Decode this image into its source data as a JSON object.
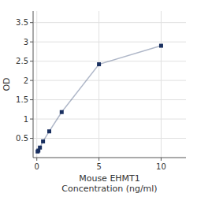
{
  "chart_data": {
    "type": "line",
    "x": [
      0.0625,
      0.125,
      0.25,
      0.5,
      1,
      2,
      5,
      10
    ],
    "values": [
      0.158,
      0.183,
      0.26,
      0.42,
      0.68,
      1.18,
      2.42,
      2.9
    ],
    "xlabel": [
      "Mouse EHMT1",
      "Concentration (ng/ml)"
    ],
    "ylabel": "OD",
    "xlim": [
      -0.3,
      12
    ],
    "ylim": [
      0.0,
      3.8
    ],
    "xticks": [
      0,
      5,
      10
    ],
    "yticks": [
      0.5,
      1,
      1.5,
      2,
      2.5,
      3,
      3.5
    ],
    "grid": true,
    "color": "#1a3060",
    "marker": "square"
  }
}
